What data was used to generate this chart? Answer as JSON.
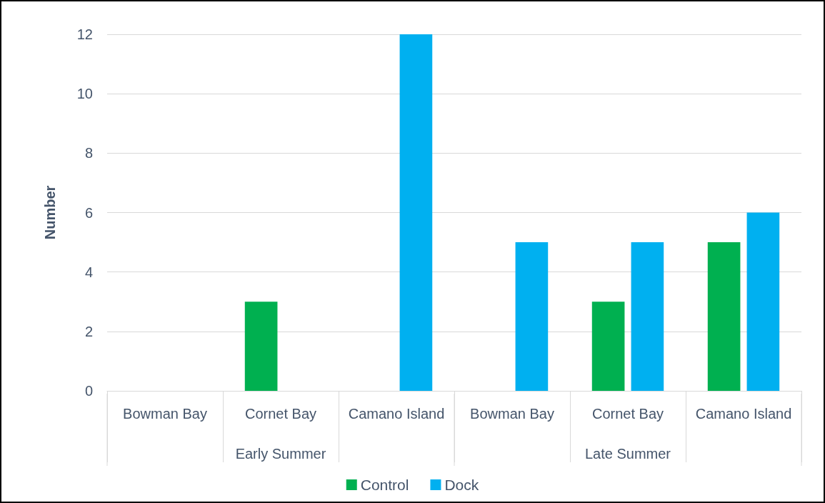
{
  "chart_data": {
    "type": "bar",
    "ylabel": "Number",
    "categories": [
      "Bowman Bay",
      "Cornet Bay",
      "Camano Island",
      "Bowman Bay",
      "Cornet Bay",
      "Camano Island"
    ],
    "annotations": [
      "Early Summer",
      "Late Summer"
    ],
    "series": [
      {
        "name": "Control",
        "color": "#00b050",
        "values": [
          0,
          3,
          0,
          0,
          3,
          5
        ]
      },
      {
        "name": "Dock",
        "color": "#00b0f0",
        "values": [
          0,
          0,
          12,
          5,
          5,
          6
        ]
      }
    ],
    "ylim": [
      0,
      12
    ],
    "yticks": [
      0,
      2,
      4,
      6,
      8,
      10,
      12
    ],
    "grid": "y",
    "legend": "bottom"
  }
}
